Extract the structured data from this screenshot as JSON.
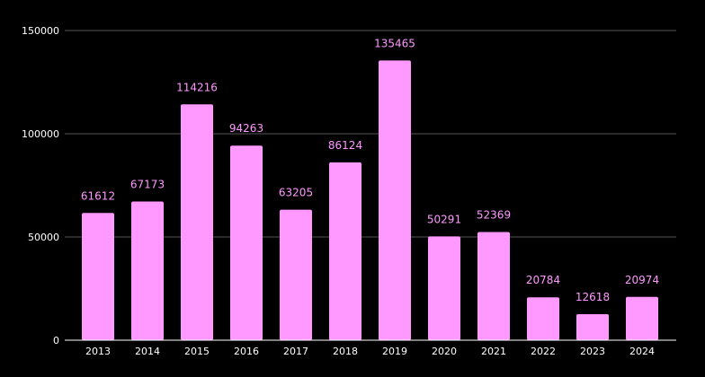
{
  "chart_data": {
    "type": "bar",
    "title": "",
    "xlabel": "",
    "ylabel": "",
    "categories": [
      "2013",
      "2014",
      "2015",
      "2016",
      "2017",
      "2018",
      "2019",
      "2020",
      "2021",
      "2022",
      "2023",
      "2024"
    ],
    "values": [
      61612,
      67173,
      114216,
      94263,
      63205,
      86124,
      135465,
      50291,
      52369,
      20784,
      12618,
      20974
    ],
    "ylim": [
      0,
      150000
    ],
    "yticks": [
      0,
      50000,
      100000,
      150000
    ],
    "grid": true,
    "legend": "none",
    "data_labels": true
  },
  "colors": {
    "background": "#000000",
    "bar": "#ff99ff",
    "data_label": "#ff99ff",
    "grid": "#555555",
    "axis": "#ffffff",
    "tick_text": "#ffffff"
  }
}
